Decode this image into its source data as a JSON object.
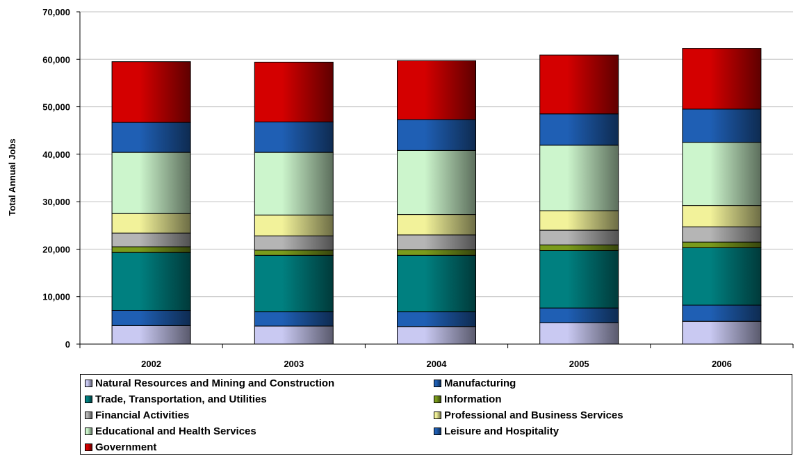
{
  "chart_data": {
    "type": "bar",
    "stacked": true,
    "categories": [
      "2002",
      "2003",
      "2004",
      "2005",
      "2006"
    ],
    "ylabel": "Total Annual Jobs",
    "xlabel": "",
    "ylim": [
      0,
      70000
    ],
    "yticks": [
      "0",
      "10,000",
      "20,000",
      "30,000",
      "40,000",
      "50,000",
      "60,000",
      "70,000"
    ],
    "grid": true,
    "legend_position": "bottom",
    "series": [
      {
        "name": "Natural Resources and Mining and Construction",
        "color": "#c9c9f2",
        "values": [
          3900,
          3800,
          3700,
          4500,
          4800
        ]
      },
      {
        "name": "Manufacturing",
        "color": "#1f5fb4",
        "values": [
          3200,
          3000,
          3100,
          3100,
          3400
        ]
      },
      {
        "name": "Trade, Transportation, and Utilities",
        "color": "#008080",
        "values": [
          12200,
          11900,
          11900,
          12100,
          12100
        ]
      },
      {
        "name": "Information",
        "color": "#7a9b1c",
        "values": [
          1200,
          1100,
          1200,
          1200,
          1200
        ]
      },
      {
        "name": "Financial Activities",
        "color": "#b5b5b5",
        "values": [
          2900,
          3000,
          3100,
          3100,
          3200
        ]
      },
      {
        "name": "Professional and Business Services",
        "color": "#f2f29a",
        "values": [
          4100,
          4400,
          4300,
          4100,
          4500
        ]
      },
      {
        "name": "Educational and Health Services",
        "color": "#ccf5cc",
        "values": [
          12900,
          13200,
          13500,
          13800,
          13300
        ]
      },
      {
        "name": "Leisure and Hospitality",
        "color": "#1f5fb4",
        "values": [
          6300,
          6400,
          6500,
          6600,
          7000
        ]
      },
      {
        "name": "Government",
        "color": "#d40000",
        "values": [
          12800,
          12600,
          12400,
          12400,
          12800
        ]
      }
    ]
  }
}
